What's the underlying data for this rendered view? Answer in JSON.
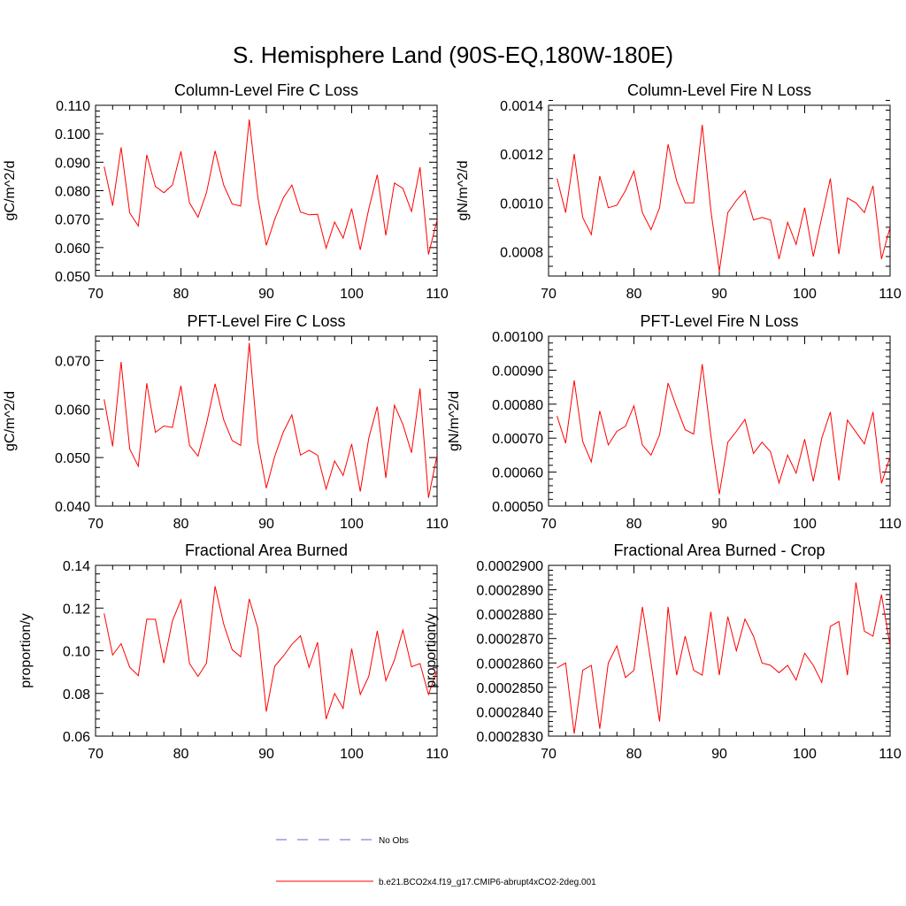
{
  "figure": {
    "title": "S. Hemisphere Land (90S-EQ,180W-180E)"
  },
  "legend": {
    "items": [
      {
        "label": "No Obs",
        "color": "#6666cc",
        "style": "dashed"
      },
      {
        "label": "b.e21.BCO2x4.f19_g17.CMIP6-abrupt4xCO2-2deg.001",
        "color": "#ff0000",
        "style": "solid"
      }
    ]
  },
  "chart_data": [
    {
      "type": "line",
      "title": "Column-Level Fire C Loss",
      "xlabel": "",
      "ylabel": "gC/m^2/d",
      "xlim": [
        70,
        110
      ],
      "ylim": [
        0.05,
        0.11
      ],
      "xticks": [
        "70",
        "80",
        "90",
        "100",
        "110"
      ],
      "yticks": [
        "0.050",
        "0.060",
        "0.070",
        "0.080",
        "0.090",
        "0.100",
        "0.110"
      ],
      "series": [
        {
          "name": "b.e21.BCO2x4.f19_g17.CMIP6-abrupt4xCO2-2deg.001",
          "color": "#ff0000",
          "x": [
            71,
            72,
            73,
            74,
            75,
            76,
            77,
            78,
            79,
            80,
            81,
            82,
            83,
            84,
            85,
            86,
            87,
            88,
            89,
            90,
            91,
            92,
            93,
            94,
            95,
            96,
            97,
            98,
            99,
            100,
            101,
            102,
            103,
            104,
            105,
            106,
            107,
            108,
            109,
            110
          ],
          "values": [
            0.0885,
            0.0747,
            0.0952,
            0.0722,
            0.0676,
            0.0926,
            0.0815,
            0.0793,
            0.082,
            0.0938,
            0.0757,
            0.0707,
            0.0793,
            0.094,
            0.082,
            0.0753,
            0.0746,
            0.105,
            0.0778,
            0.0608,
            0.07,
            0.0775,
            0.082,
            0.0725,
            0.0715,
            0.0717,
            0.0598,
            0.069,
            0.0633,
            0.0737,
            0.0592,
            0.0736,
            0.0856,
            0.0643,
            0.0827,
            0.0808,
            0.0727,
            0.0882,
            0.0576,
            0.0697
          ]
        }
      ]
    },
    {
      "type": "line",
      "title": "Column-Level Fire N Loss",
      "xlabel": "",
      "ylabel": "gN/m^2/d",
      "xlim": [
        70,
        110
      ],
      "ylim": [
        0.0007,
        0.0014
      ],
      "xticks": [
        "70",
        "80",
        "90",
        "100",
        "110"
      ],
      "yticks": [
        "0.0008",
        "0.0010",
        "0.0012",
        "0.0014"
      ],
      "series": [
        {
          "name": "b.e21.BCO2x4.f19_g17.CMIP6-abrupt4xCO2-2deg.001",
          "color": "#ff0000",
          "x": [
            71,
            72,
            73,
            74,
            75,
            76,
            77,
            78,
            79,
            80,
            81,
            82,
            83,
            84,
            85,
            86,
            87,
            88,
            89,
            90,
            91,
            92,
            93,
            94,
            95,
            96,
            97,
            98,
            99,
            100,
            101,
            102,
            103,
            104,
            105,
            106,
            107,
            108,
            109,
            110
          ],
          "values": [
            0.0011,
            0.00096,
            0.0012,
            0.00094,
            0.00087,
            0.00111,
            0.00098,
            0.00099,
            0.00105,
            0.00113,
            0.00096,
            0.00089,
            0.00098,
            0.00124,
            0.00109,
            0.001,
            0.001,
            0.00132,
            0.00097,
            0.00072,
            0.00096,
            0.00101,
            0.00105,
            0.00093,
            0.00094,
            0.00093,
            0.00077,
            0.00092,
            0.00083,
            0.00098,
            0.00078,
            0.00094,
            0.0011,
            0.00079,
            0.00102,
            0.001,
            0.00096,
            0.00107,
            0.00077,
            0.0009
          ]
        }
      ]
    },
    {
      "type": "line",
      "title": "PFT-Level Fire C Loss",
      "xlabel": "",
      "ylabel": "gC/m^2/d",
      "xlim": [
        70,
        110
      ],
      "ylim": [
        0.04,
        0.075
      ],
      "xticks": [
        "70",
        "80",
        "90",
        "100",
        "110"
      ],
      "yticks": [
        "0.040",
        "0.050",
        "0.060",
        "0.070"
      ],
      "series": [
        {
          "name": "b.e21.BCO2x4.f19_g17.CMIP6-abrupt4xCO2-2deg.001",
          "color": "#ff0000",
          "x": [
            71,
            72,
            73,
            74,
            75,
            76,
            77,
            78,
            79,
            80,
            81,
            82,
            83,
            84,
            85,
            86,
            87,
            88,
            89,
            90,
            91,
            92,
            93,
            94,
            95,
            96,
            97,
            98,
            99,
            100,
            101,
            102,
            103,
            104,
            105,
            106,
            107,
            108,
            109,
            110
          ],
          "values": [
            0.062,
            0.0523,
            0.0697,
            0.0518,
            0.0482,
            0.0653,
            0.0552,
            0.0565,
            0.0562,
            0.0648,
            0.0525,
            0.0503,
            0.057,
            0.0652,
            0.0578,
            0.0535,
            0.0525,
            0.0736,
            0.0532,
            0.0437,
            0.0503,
            0.0553,
            0.0588,
            0.0505,
            0.0515,
            0.0505,
            0.0435,
            0.0493,
            0.0463,
            0.0528,
            0.043,
            0.054,
            0.0605,
            0.0458,
            0.0608,
            0.0568,
            0.051,
            0.0642,
            0.0417,
            0.0505
          ]
        }
      ]
    },
    {
      "type": "line",
      "title": "PFT-Level Fire N Loss",
      "xlabel": "",
      "ylabel": "gN/m^2/d",
      "xlim": [
        70,
        110
      ],
      "ylim": [
        0.0005,
        0.001
      ],
      "xticks": [
        "70",
        "80",
        "90",
        "100",
        "110"
      ],
      "yticks": [
        "0.00050",
        "0.00060",
        "0.00070",
        "0.00080",
        "0.00090",
        "0.00100"
      ],
      "series": [
        {
          "name": "b.e21.BCO2x4.f19_g17.CMIP6-abrupt4xCO2-2deg.001",
          "color": "#ff0000",
          "x": [
            71,
            72,
            73,
            74,
            75,
            76,
            77,
            78,
            79,
            80,
            81,
            82,
            83,
            84,
            85,
            86,
            87,
            88,
            89,
            90,
            91,
            92,
            93,
            94,
            95,
            96,
            97,
            98,
            99,
            100,
            101,
            102,
            103,
            104,
            105,
            106,
            107,
            108,
            109,
            110
          ],
          "values": [
            0.000765,
            0.000685,
            0.00087,
            0.00069,
            0.00063,
            0.00078,
            0.00068,
            0.00072,
            0.000735,
            0.000795,
            0.00068,
            0.00065,
            0.00071,
            0.000862,
            0.00079,
            0.000725,
            0.000712,
            0.000918,
            0.000708,
            0.000535,
            0.000688,
            0.00072,
            0.000755,
            0.000655,
            0.000688,
            0.00066,
            0.000568,
            0.00065,
            0.000597,
            0.000697,
            0.000573,
            0.0007,
            0.000777,
            0.000575,
            0.000753,
            0.000718,
            0.000683,
            0.000777,
            0.000567,
            0.000645
          ]
        }
      ]
    },
    {
      "type": "line",
      "title": "Fractional Area Burned",
      "xlabel": "",
      "ylabel": "proportion/y",
      "xlim": [
        70,
        110
      ],
      "ylim": [
        0.06,
        0.14
      ],
      "xticks": [
        "70",
        "80",
        "90",
        "100",
        "110"
      ],
      "yticks": [
        "0.06",
        "0.08",
        "0.10",
        "0.12",
        "0.14"
      ],
      "series": [
        {
          "name": "b.e21.BCO2x4.f19_g17.CMIP6-abrupt4xCO2-2deg.001",
          "color": "#ff0000",
          "x": [
            71,
            72,
            73,
            74,
            75,
            76,
            77,
            78,
            79,
            80,
            81,
            82,
            83,
            84,
            85,
            86,
            87,
            88,
            89,
            90,
            91,
            92,
            93,
            94,
            95,
            96,
            97,
            98,
            99,
            100,
            101,
            102,
            103,
            104,
            105,
            106,
            107,
            108,
            109,
            110
          ],
          "values": [
            0.1175,
            0.098,
            0.1033,
            0.0923,
            0.0883,
            0.1148,
            0.1147,
            0.0942,
            0.114,
            0.1238,
            0.094,
            0.088,
            0.0942,
            0.1302,
            0.1125,
            0.1005,
            0.0972,
            0.1243,
            0.1105,
            0.0715,
            0.0928,
            0.0975,
            0.103,
            0.107,
            0.0922,
            0.104,
            0.068,
            0.08,
            0.073,
            0.101,
            0.0795,
            0.088,
            0.1093,
            0.086,
            0.0957,
            0.1097,
            0.0925,
            0.094,
            0.0795,
            0.091
          ]
        }
      ]
    },
    {
      "type": "line",
      "title": "Fractional Area Burned - Crop",
      "xlabel": "",
      "ylabel": "proportion/y",
      "xlim": [
        70,
        110
      ],
      "ylim": [
        0.000283,
        0.00029
      ],
      "xticks": [
        "70",
        "80",
        "90",
        "100",
        "110"
      ],
      "yticks": [
        "0.0002830",
        "0.0002840",
        "0.0002850",
        "0.0002860",
        "0.0002870",
        "0.0002880",
        "0.0002890",
        "0.0002900"
      ],
      "series": [
        {
          "name": "b.e21.BCO2x4.f19_g17.CMIP6-abrupt4xCO2-2deg.001",
          "color": "#ff0000",
          "x": [
            71,
            72,
            73,
            74,
            75,
            76,
            77,
            78,
            79,
            80,
            81,
            82,
            83,
            84,
            85,
            86,
            87,
            88,
            89,
            90,
            91,
            92,
            93,
            94,
            95,
            96,
            97,
            98,
            99,
            100,
            101,
            102,
            103,
            104,
            105,
            106,
            107,
            108,
            109,
            110
          ],
          "values": [
            0.0002858,
            0.000286,
            0.0002831,
            0.0002857,
            0.0002859,
            0.0002833,
            0.000286,
            0.0002867,
            0.0002854,
            0.0002857,
            0.0002883,
            0.000286,
            0.0002836,
            0.0002883,
            0.0002855,
            0.0002871,
            0.0002857,
            0.0002855,
            0.0002881,
            0.0002855,
            0.0002879,
            0.0002865,
            0.0002878,
            0.0002871,
            0.000286,
            0.0002859,
            0.0002856,
            0.0002859,
            0.0002853,
            0.0002864,
            0.0002859,
            0.0002852,
            0.0002875,
            0.0002877,
            0.0002855,
            0.0002893,
            0.0002873,
            0.0002871,
            0.0002888,
            0.0002867
          ]
        }
      ]
    }
  ]
}
